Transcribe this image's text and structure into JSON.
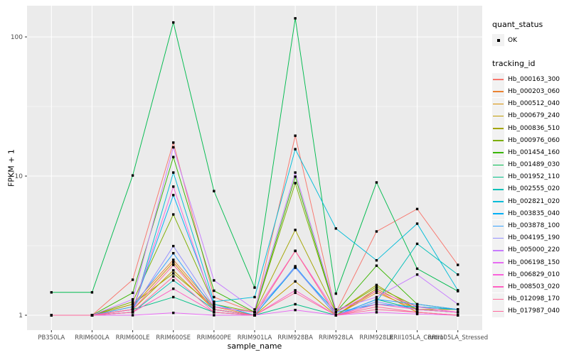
{
  "chart_data": {
    "type": "line",
    "title": "",
    "xlabel": "sample_name",
    "ylabel": "FPKM + 1",
    "y_scale": "log10",
    "y_ticks": [
      "1",
      "10",
      "100"
    ],
    "y_tick_values": [
      1,
      10,
      100
    ],
    "y_minor_values": [
      3.162,
      31.62
    ],
    "ylim_log": [
      0.78,
      168
    ],
    "grid": true,
    "panel_bg": "#EBEBEB",
    "gridline_color": "#FFFFFF",
    "point_color": "#000000",
    "legend_position": "right",
    "x_categories": [
      "PB350LA",
      "RRIM600LA",
      "RRIM600LE",
      "RRIM600SE",
      "RRIM600PE",
      "RRIM901LA",
      "RRIM928BA",
      "RRIM928LA",
      "RRIM928LE",
      "RRII105LA_Control",
      "RRII105LA_Stressed"
    ],
    "series": [
      {
        "tracking_id": "Hb_000163_300",
        "color": "#F8766D",
        "values": [
          1.0,
          1.0,
          1.8,
          17.4,
          1.35,
          1.05,
          19.5,
          1.05,
          4.0,
          5.8,
          2.3
        ]
      },
      {
        "tracking_id": "Hb_000203_060",
        "color": "#EA8331",
        "values": [
          1.0,
          1.0,
          1.2,
          2.5,
          1.15,
          1.0,
          2.9,
          1.0,
          1.45,
          1.1,
          1.05
        ]
      },
      {
        "tracking_id": "Hb_000512_040",
        "color": "#D89000",
        "values": [
          1.0,
          1.0,
          1.15,
          2.4,
          1.1,
          1.0,
          2.2,
          1.0,
          1.5,
          1.05,
          1.0
        ]
      },
      {
        "tracking_id": "Hb_000679_240",
        "color": "#C09B00",
        "values": [
          1.0,
          1.0,
          1.1,
          2.1,
          1.1,
          1.0,
          1.75,
          1.0,
          1.55,
          1.1,
          1.05
        ]
      },
      {
        "tracking_id": "Hb_000836_510",
        "color": "#A3A500",
        "values": [
          1.0,
          1.0,
          1.2,
          2.0,
          1.15,
          1.05,
          4.1,
          1.05,
          1.65,
          1.1,
          1.1
        ]
      },
      {
        "tracking_id": "Hb_000976_060",
        "color": "#7CAE00",
        "values": [
          1.0,
          1.0,
          1.25,
          5.3,
          1.2,
          1.05,
          8.9,
          1.05,
          1.6,
          1.15,
          1.1
        ]
      },
      {
        "tracking_id": "Hb_001454_160",
        "color": "#39B600",
        "values": [
          1.0,
          1.0,
          1.45,
          13.7,
          1.5,
          1.05,
          9.9,
          1.05,
          2.27,
          1.2,
          1.1
        ]
      },
      {
        "tracking_id": "Hb_001489_030",
        "color": "#00BB4E",
        "values": [
          1.46,
          1.46,
          10.1,
          127.0,
          7.8,
          1.58,
          136.0,
          1.43,
          9.0,
          2.16,
          1.49
        ]
      },
      {
        "tracking_id": "Hb_001952_110",
        "color": "#00C087",
        "values": [
          1.0,
          1.0,
          1.1,
          1.35,
          1.05,
          1.0,
          1.2,
          1.0,
          1.3,
          1.1,
          1.05
        ]
      },
      {
        "tracking_id": "Hb_002555_020",
        "color": "#00C0B8",
        "values": [
          1.0,
          1.0,
          1.05,
          1.78,
          1.1,
          1.0,
          2.2,
          1.0,
          1.25,
          3.26,
          1.96
        ]
      },
      {
        "tracking_id": "Hb_002821_020",
        "color": "#00BCD8",
        "values": [
          1.0,
          1.0,
          1.05,
          10.6,
          1.25,
          1.35,
          15.6,
          4.2,
          2.48,
          4.55,
          1.51
        ]
      },
      {
        "tracking_id": "Hb_003835_040",
        "color": "#00B0F6",
        "values": [
          1.0,
          1.0,
          1.1,
          7.3,
          1.2,
          1.0,
          2.2,
          1.05,
          1.2,
          1.15,
          1.1
        ]
      },
      {
        "tracking_id": "Hb_003878_100",
        "color": "#35A2FF",
        "values": [
          1.0,
          1.0,
          1.15,
          2.79,
          1.1,
          1.0,
          2.25,
          1.0,
          1.3,
          1.2,
          1.1
        ]
      },
      {
        "tracking_id": "Hb_004195_190",
        "color": "#9590FF",
        "values": [
          1.0,
          1.0,
          1.1,
          3.14,
          1.15,
          1.05,
          2.2,
          1.0,
          1.25,
          1.1,
          1.05
        ]
      },
      {
        "tracking_id": "Hb_005000_220",
        "color": "#C77CFF",
        "values": [
          1.0,
          1.0,
          1.3,
          16.1,
          1.78,
          1.1,
          10.6,
          1.1,
          1.35,
          1.96,
          1.2
        ]
      },
      {
        "tracking_id": "Hb_006198_150",
        "color": "#E76BF3",
        "values": [
          1.0,
          1.0,
          1.0,
          1.04,
          1.0,
          1.0,
          1.09,
          1.0,
          1.05,
          1.02,
          1.0
        ]
      },
      {
        "tracking_id": "Hb_006829_010",
        "color": "#FA62DB",
        "values": [
          1.0,
          1.0,
          1.1,
          8.4,
          1.15,
          1.05,
          2.9,
          1.05,
          1.5,
          1.15,
          1.05
        ]
      },
      {
        "tracking_id": "Hb_008503_020",
        "color": "#FF61C2",
        "values": [
          1.0,
          1.0,
          1.05,
          1.55,
          1.05,
          1.0,
          1.51,
          1.0,
          1.2,
          1.1,
          1.05
        ]
      },
      {
        "tracking_id": "Hb_012098_170",
        "color": "#FF6A98",
        "values": [
          1.0,
          1.0,
          1.1,
          2.3,
          1.1,
          1.0,
          2.9,
          1.0,
          1.15,
          1.05,
          1.0
        ]
      },
      {
        "tracking_id": "Hb_017987_040",
        "color": "#FF689C",
        "values": [
          1.0,
          1.0,
          1.05,
          1.9,
          1.05,
          1.0,
          1.45,
          1.0,
          1.1,
          1.05,
          1.0
        ]
      }
    ],
    "legend": {
      "quant_status": {
        "title": "quant_status",
        "items": [
          {
            "label": "OK",
            "glyph": "black-point"
          }
        ]
      },
      "tracking_id": {
        "title": "tracking_id"
      }
    }
  }
}
